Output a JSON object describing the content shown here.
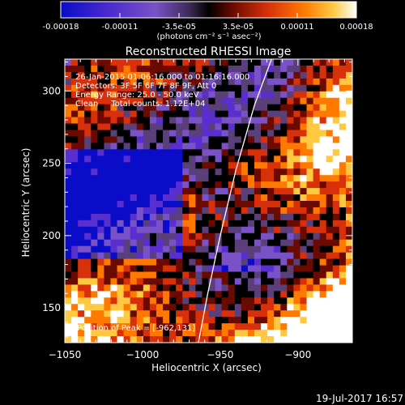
{
  "chart_data": {
    "type": "heatmap",
    "title": "Reconstructed RHESSI Image",
    "colorbar": {
      "ticks": [
        "-0.00018",
        "-0.00011",
        "-3.5e-05",
        "3.5e-05",
        "0.00011",
        "0.00018"
      ],
      "unit_label": "(photons cm⁻² s⁻¹ asec⁻²)",
      "vmin": -0.00018,
      "vmax": 0.00018
    },
    "annotations": {
      "time_range": "26-Jan-2015 01:06:16.000 to 01:16:16.000",
      "detectors": "Detectors: 3F 5F 6F 7F 8F 9F, Att 0",
      "energy_range": "Energy Range: 25.0 - 50.0 keV",
      "clean_counts": "Clean     Total counts: 1.12E+04",
      "peak_position": "Position of Peak = [-962,131]"
    },
    "xlabel": "Heliocentric X (arcsec)",
    "ylabel": "Heliocentric Y (arcsec)",
    "xlim": [
      -1050,
      -865
    ],
    "ylim": [
      126,
      322
    ],
    "xticks": [
      -1050,
      -1000,
      -950,
      -900
    ],
    "yticks": [
      150,
      200,
      250,
      300
    ],
    "xtick_labels": [
      "−1050",
      "−1000",
      "−950",
      "−900"
    ],
    "ytick_labels": [
      "150",
      "200",
      "250",
      "300"
    ],
    "limb_curve": {
      "x": [
        -964,
        -958,
        -950,
        -940,
        -928,
        -917
      ],
      "y": [
        126,
        160,
        200,
        245,
        290,
        322
      ]
    },
    "colormap": [
      "#0a0cc8",
      "#5a2fd0",
      "#7a52c8",
      "#5a3f7a",
      "#000000",
      "#6a0a00",
      "#d8300a",
      "#ff7800",
      "#ffc840",
      "#ffffff"
    ]
  },
  "footer": {
    "date_stamp": "19-Jul-2017 16:57"
  }
}
